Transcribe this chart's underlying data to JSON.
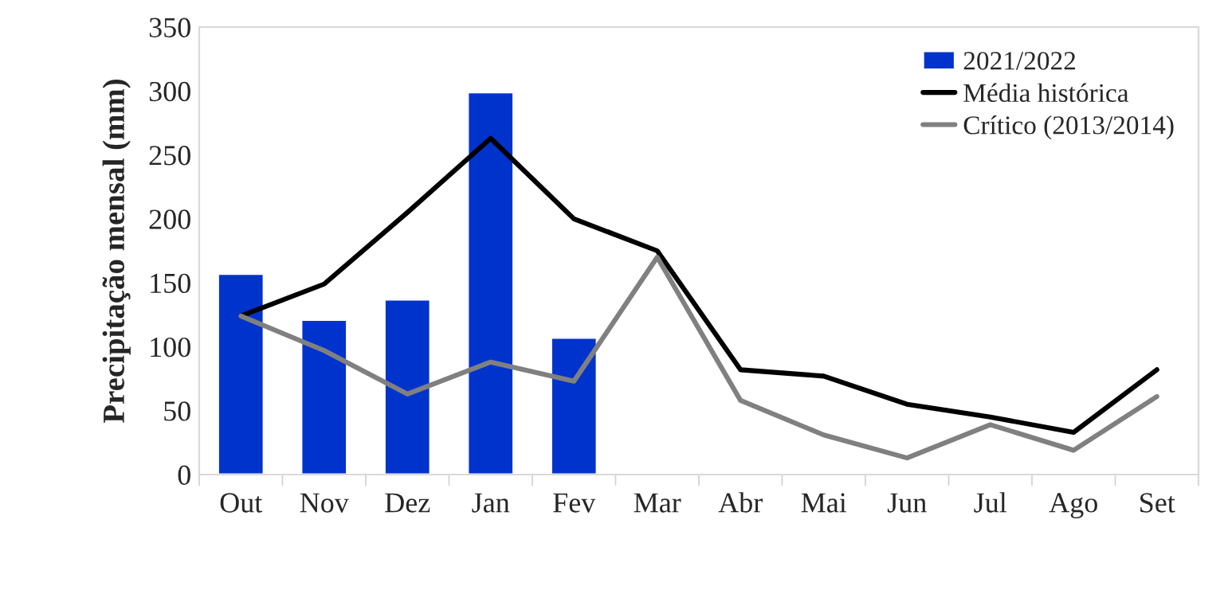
{
  "chart_data": {
    "type": "bar",
    "ylabel": "Precipitação mensal (mm)",
    "categories": [
      "Out",
      "Nov",
      "Dez",
      "Jan",
      "Fev",
      "Mar",
      "Abr",
      "Mai",
      "Jun",
      "Jul",
      "Ago",
      "Set"
    ],
    "series": [
      {
        "name": "2021/2022",
        "color": "#0033cc",
        "values": [
          157,
          121,
          137,
          299,
          107,
          null,
          null,
          null,
          null,
          null,
          null,
          null
        ]
      },
      {
        "name": "Média histórica",
        "type": "line",
        "color": "#000000",
        "values": [
          124,
          149,
          205,
          263,
          200,
          175,
          82,
          77,
          55,
          45,
          33,
          82
        ]
      },
      {
        "name": "Crítico (2013/2014)",
        "type": "line",
        "color": "#808080",
        "values": [
          124,
          97,
          63,
          88,
          73,
          170,
          58,
          31,
          13,
          39,
          19,
          61
        ]
      }
    ],
    "ylim": [
      0,
      350
    ],
    "yticks": [
      0,
      50,
      100,
      150,
      200,
      250,
      300,
      350
    ],
    "grid": false,
    "legend": "top right",
    "marker": "none",
    "line_style": "solid"
  }
}
